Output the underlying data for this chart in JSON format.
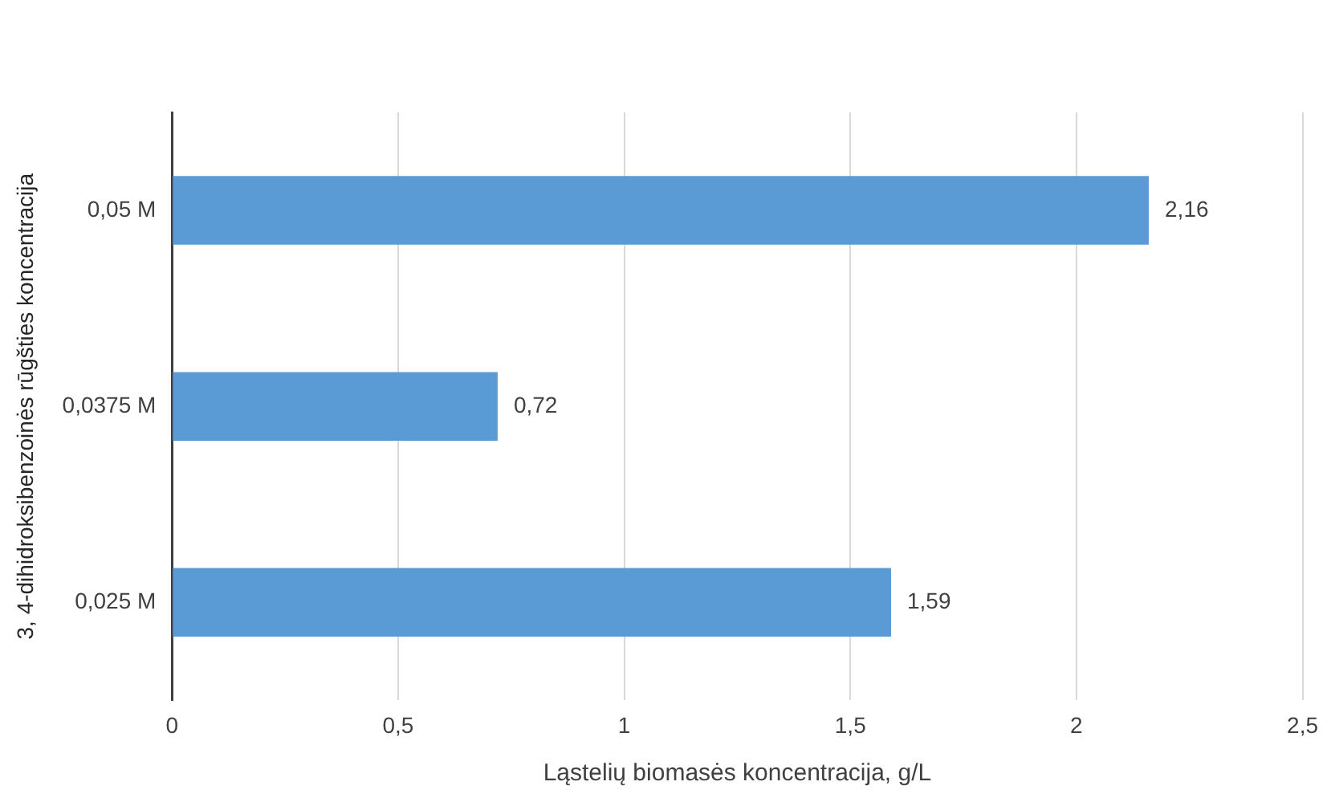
{
  "chart_data": {
    "type": "bar",
    "orientation": "horizontal",
    "xlabel": "Ląstelių biomasės koncentracija, g/L",
    "ylabel": "3, 4-dihidroksibenzoinės rūgšties koncentracija",
    "categories": [
      "0,05 M",
      "0,0375 M",
      "0,025 M"
    ],
    "values": [
      2.16,
      0.72,
      1.59
    ],
    "color": "#5b9bd5",
    "value_labels": [
      "2,16",
      "0,72",
      "1,59"
    ],
    "xlim": [
      0,
      2.5
    ],
    "xticks": [
      0,
      {
        "value": 0.5,
        "label": "0,5"
      },
      1,
      {
        "value": 1.5,
        "label": "1,5"
      },
      2,
      {
        "value": 2.5,
        "label": "2,5"
      }
    ],
    "grid": "x",
    "legend": false
  }
}
